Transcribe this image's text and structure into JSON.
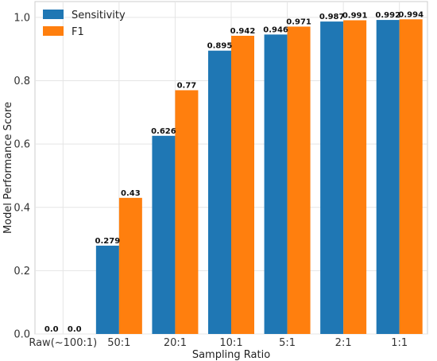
{
  "chart_data": {
    "type": "bar",
    "xlabel": "Sampling Ratio",
    "ylabel": "Model Performance Score",
    "ylim": [
      0,
      1.05
    ],
    "yticks": [
      0.0,
      0.2,
      0.4,
      0.6,
      0.8,
      1.0
    ],
    "ytick_labels": [
      "0.0",
      "0.2",
      "0.4",
      "0.6",
      "0.8",
      "1.0"
    ],
    "categories": [
      "Raw(~100:1)",
      "50:1",
      "20:1",
      "10:1",
      "5:1",
      "2:1",
      "1:1"
    ],
    "series": [
      {
        "name": "Sensitivity",
        "color": "#1f77b4",
        "values": [
          0.0,
          0.279,
          0.626,
          0.895,
          0.946,
          0.987,
          0.992
        ],
        "labels": [
          "0.0",
          "0.279",
          "0.626",
          "0.895",
          "0.946",
          "0.987",
          "0.992"
        ]
      },
      {
        "name": "F1",
        "color": "#ff7f0e",
        "values": [
          0.0,
          0.43,
          0.77,
          0.942,
          0.971,
          0.991,
          0.994
        ],
        "labels": [
          "0.0",
          "0.43",
          "0.77",
          "0.942",
          "0.971",
          "0.991",
          "0.994"
        ]
      }
    ],
    "grid": true,
    "legend_position": "top-left"
  }
}
